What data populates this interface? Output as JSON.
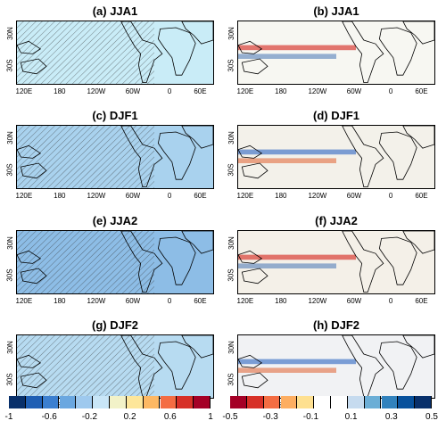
{
  "panels": [
    {
      "title": "(a) JJA1",
      "fill": "#c9ecf7"
    },
    {
      "title": "(b) JJA1",
      "fill": "#f7f7f2"
    },
    {
      "title": "(c) DJF1",
      "fill": "#a9d2ee"
    },
    {
      "title": "(d) DJF1",
      "fill": "#f3f1ea"
    },
    {
      "title": "(e) JJA2",
      "fill": "#8dbde6"
    },
    {
      "title": "(f) JJA2",
      "fill": "#f4f0e8"
    },
    {
      "title": "(g) DJF2",
      "fill": "#b7dbf1"
    },
    {
      "title": "(h) DJF2",
      "fill": "#f1f2f4"
    }
  ],
  "x_ticks": [
    "120E",
    "180",
    "120W",
    "60W",
    "0",
    "60E"
  ],
  "y_ticks": [
    "30N",
    "30S"
  ],
  "colorbar_left": {
    "labels": [
      "-1",
      "-0.6",
      "-0.2",
      "0.2",
      "0.6",
      "1"
    ],
    "colors": [
      "#08306b",
      "#1f5fb4",
      "#3b7fd0",
      "#6aa7e0",
      "#9ec9ee",
      "#c9e6f7",
      "#f2f2c8",
      "#fde69a",
      "#fdb863",
      "#f46d43",
      "#d73027",
      "#a50026"
    ]
  },
  "colorbar_right": {
    "labels": [
      "-0.5",
      "-0.3",
      "-0.1",
      "0.1",
      "0.3",
      "0.5"
    ],
    "colors": [
      "#a50026",
      "#d73027",
      "#f46d43",
      "#fdae61",
      "#fee090",
      "#ffffff",
      "#ffffff",
      "#c6dbef",
      "#6baed6",
      "#3182bd",
      "#08519c",
      "#08306b"
    ]
  }
}
